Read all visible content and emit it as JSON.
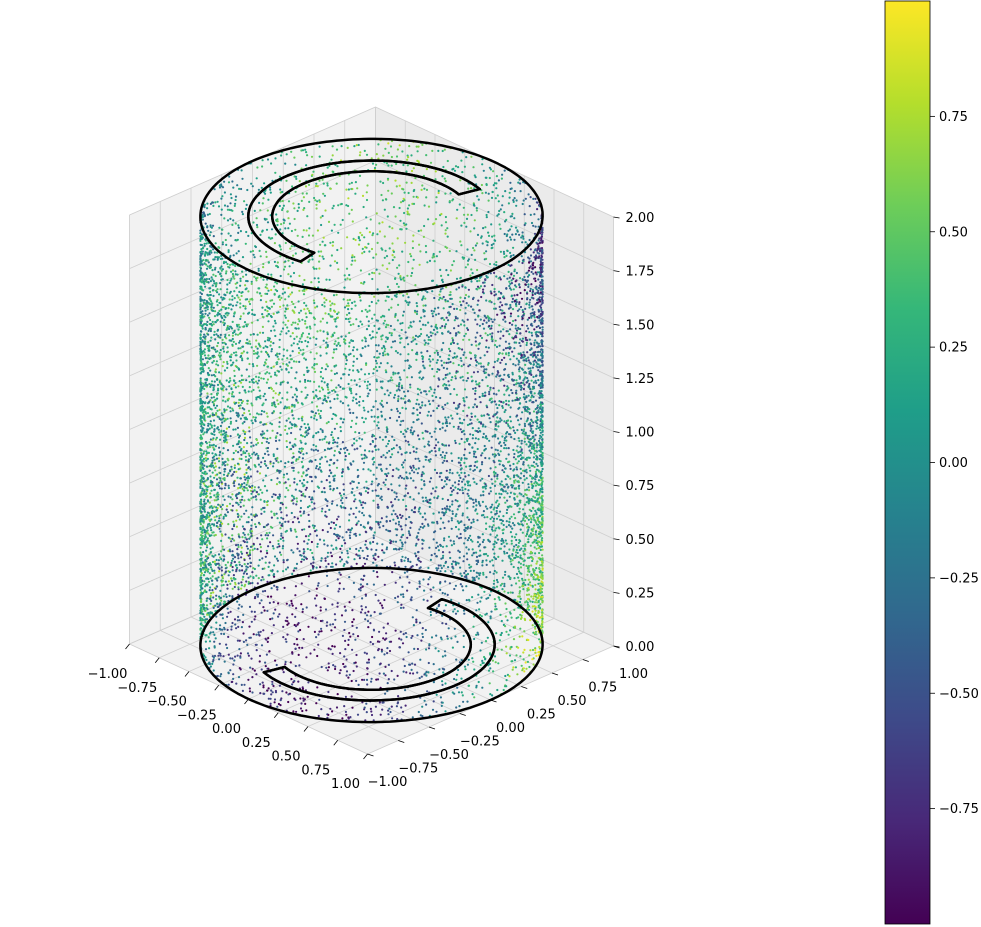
{
  "chart_data": {
    "type": "scatter",
    "projection": "3d",
    "x_axis": {
      "range": [
        -1.0,
        1.0
      ],
      "ticks": [
        "−1.00",
        "−0.75",
        "−0.50",
        "−0.25",
        "0.00",
        "0.25",
        "0.50",
        "0.75",
        "1.00"
      ]
    },
    "y_axis": {
      "range": [
        -1.0,
        1.0
      ],
      "ticks": [
        "−1.00",
        "−0.75",
        "−0.50",
        "−0.25",
        "0.00",
        "0.25",
        "0.50",
        "0.75",
        "1.00"
      ]
    },
    "z_axis": {
      "range": [
        0.0,
        2.0
      ],
      "ticks": [
        "0.00",
        "0.25",
        "0.50",
        "0.75",
        "1.00",
        "1.25",
        "1.50",
        "1.75",
        "2.00"
      ]
    },
    "grid": true,
    "colormap": "viridis",
    "colorbar": {
      "range": [
        -1.0,
        1.0
      ],
      "position": "right",
      "ticks": [
        "−0.75",
        "−0.50",
        "−0.25",
        "0.00",
        "0.25",
        "0.50",
        "0.75"
      ],
      "tick_values": [
        -0.75,
        -0.5,
        -0.25,
        0.0,
        0.25,
        0.5,
        0.75
      ]
    },
    "series": [
      {
        "kind": "scatter",
        "surface": "cylinder",
        "radius": 1.0,
        "z_range": [
          0.0,
          2.0
        ],
        "point_count": 9000,
        "marker_color": "colormap"
      },
      {
        "kind": "line",
        "shape": "circle",
        "radius": 1.0,
        "z": 2.0,
        "color": "#000000"
      },
      {
        "kind": "line",
        "shape": "circle",
        "radius": 1.0,
        "z": 0.0,
        "color": "#000000"
      },
      {
        "kind": "line",
        "shape": "arc",
        "radius": 0.65,
        "z": 2.0,
        "color": "#000000"
      },
      {
        "kind": "line",
        "shape": "arc",
        "radius": 0.65,
        "z": 0.0,
        "color": "#000000"
      },
      {
        "kind": "line",
        "shape": "arc",
        "radius": 0.65,
        "z": 2.0,
        "color": "#000000"
      },
      {
        "kind": "line",
        "shape": "arc",
        "radius": 0.65,
        "z": 0.0,
        "color": "#000000"
      }
    ]
  }
}
